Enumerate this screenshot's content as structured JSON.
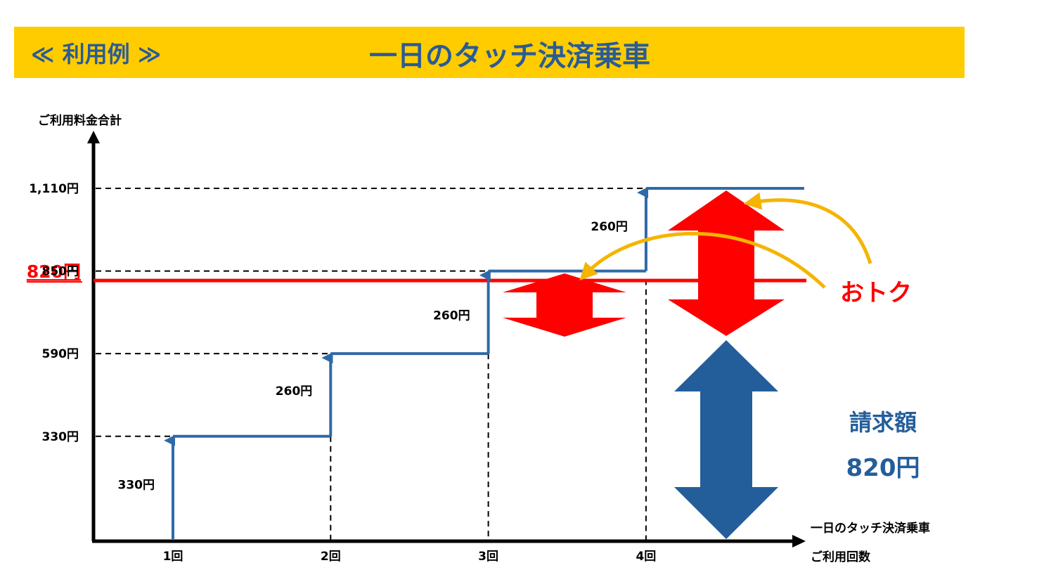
{
  "banner": {
    "label": "≪ 利用例 ≫",
    "title": "一日のタッチ決済乗車"
  },
  "colors": {
    "banner_bg": "#FFCC00",
    "banner_text": "#2A5B97",
    "step_line": "#2F6AA8",
    "cap_line": "#FF0000",
    "savings_arrow": "#FF0000",
    "billed_arrow": "#245E9A",
    "callout_arrow": "#F5B400",
    "axis": "#000000"
  },
  "chart_data": {
    "type": "line",
    "ylabel": "ご利用料金合計",
    "xlabel": [
      "一日のタッチ決済乗車",
      "ご利用回数"
    ],
    "categories": [
      "1回",
      "2回",
      "3回",
      "4回"
    ],
    "ytick_labels": [
      "330円",
      "590円",
      "850円",
      "1,110円"
    ],
    "ytick_values": [
      330,
      590,
      850,
      1110
    ],
    "ylim": [
      0,
      1300
    ],
    "series": [
      {
        "x": [
          1,
          2,
          3,
          4
        ],
        "values": [
          330,
          590,
          850,
          1110
        ]
      }
    ],
    "increment_labels": [
      "330円",
      "260円",
      "260円",
      "260円"
    ],
    "cap": {
      "value": 820,
      "label": "820円"
    },
    "savings_label": "おトク",
    "billed": {
      "label": "請求額",
      "amount": "820円"
    }
  }
}
